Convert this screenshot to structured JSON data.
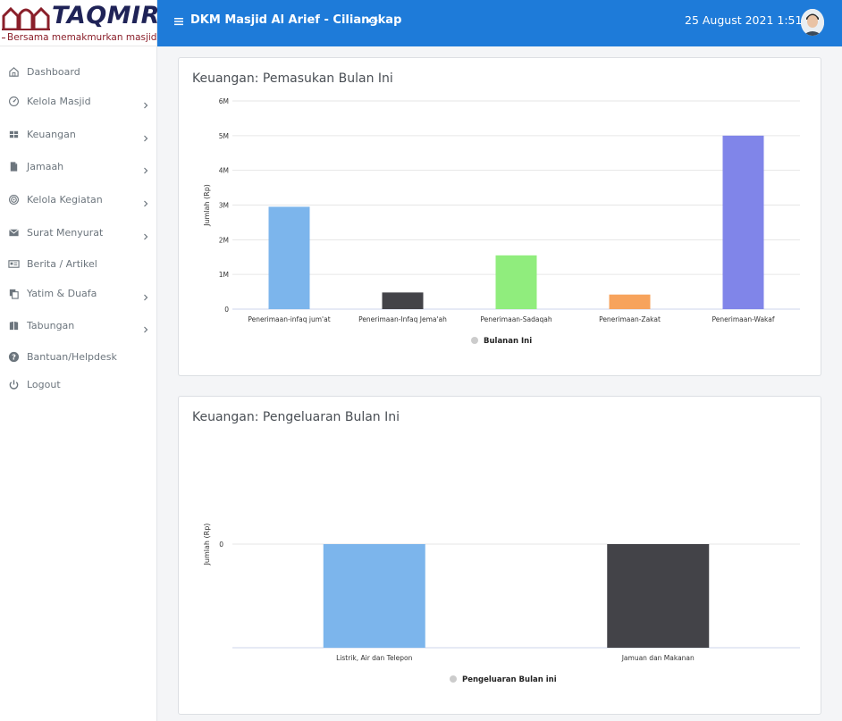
{
  "brand": {
    "name": "TAQMIR",
    "tagline": "Bersama memakmurkan masjid",
    "color": "#1f2357",
    "accent": "#8a1f2a"
  },
  "header": {
    "title": "DKM Masjid Al Arief - Ciliangkap",
    "datetime": "25 August 2021 1:51:2",
    "bg_color": "#1e7bd9"
  },
  "sidebar": {
    "items": [
      {
        "label": "Dashboard",
        "icon": "home-icon",
        "has_submenu": false
      },
      {
        "label": "Kelola Masjid",
        "icon": "dashboard-gauge-icon",
        "has_submenu": true
      },
      {
        "label": "Keuangan",
        "icon": "table-icon",
        "has_submenu": true
      },
      {
        "label": "Jamaah",
        "icon": "document-icon",
        "has_submenu": true
      },
      {
        "label": "Kelola Kegiatan",
        "icon": "target-icon",
        "has_submenu": true
      },
      {
        "label": "Surat Menyurat",
        "icon": "envelope-icon",
        "has_submenu": true
      },
      {
        "label": "Berita / Artikel",
        "icon": "newspaper-icon",
        "has_submenu": false
      },
      {
        "label": "Yatim & Duafa",
        "icon": "copy-icon",
        "has_submenu": true
      },
      {
        "label": "Tabungan",
        "icon": "book-icon",
        "has_submenu": true
      },
      {
        "label": "Bantuan/Helpdesk",
        "icon": "question-circle-icon",
        "has_submenu": false
      },
      {
        "label": "Logout",
        "icon": "power-icon",
        "has_submenu": false
      }
    ]
  },
  "cards": [
    {
      "title": "Keuangan: Pemasukan Bulan Ini"
    },
    {
      "title": "Keuangan: Pengeluaran Bulan Ini"
    }
  ],
  "chart_data": [
    {
      "type": "bar",
      "title": "Keuangan: Pemasukan Bulan Ini",
      "categories": [
        "Penerimaan-infaq jum'at",
        "Penerimaan-Infaq Jema'ah",
        "Penerimaan-Sadaqah",
        "Penerimaan-Zakat",
        "Penerimaan-Wakaf"
      ],
      "values": [
        2950000,
        480000,
        1550000,
        420000,
        5000000
      ],
      "bar_colors": [
        "#7cb5ec",
        "#434348",
        "#90ed7d",
        "#f7a35c",
        "#8085e9"
      ],
      "ylabel": "Jumlah (Rp)",
      "ylim": [
        0,
        6000000
      ],
      "yticks": [
        "0",
        "1M",
        "2M",
        "3M",
        "4M",
        "5M",
        "6M"
      ],
      "legend": "Bulanan Ini",
      "legend_placement": "bottom-center",
      "grid": true
    },
    {
      "type": "bar",
      "title": "Keuangan: Pengeluaran Bulan Ini",
      "categories": [
        "Listrik, Air dan Telepon",
        "Jamuan dan Makanan"
      ],
      "values": [
        0,
        0
      ],
      "bar_colors": [
        "#7cb5ec",
        "#434348"
      ],
      "ylabel": "Jumlah (Rp)",
      "yticks": [
        "0"
      ],
      "legend": "Pengeluaran Bulan ini",
      "legend_placement": "bottom-center",
      "grid": true
    }
  ]
}
